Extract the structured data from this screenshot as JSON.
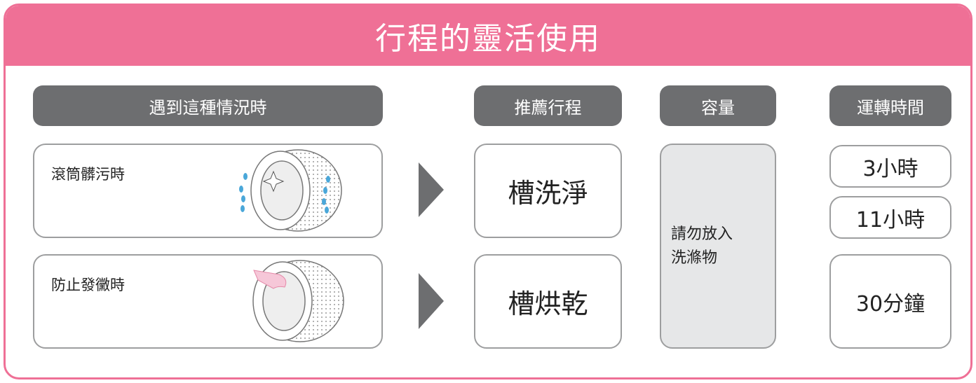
{
  "header": {
    "title": "行程的靈活使用"
  },
  "columns": [
    "遇到這種情況時",
    "推薦行程",
    "容量",
    "運轉時間"
  ],
  "rows": [
    {
      "situation": "滾筒髒污時",
      "program": "槽洗淨"
    },
    {
      "situation": "防止發黴時",
      "program": "槽烘乾"
    }
  ],
  "capacity": [
    "請勿放入",
    "洗滌物"
  ],
  "times": [
    "3小時",
    "11小時",
    "30分鐘"
  ]
}
